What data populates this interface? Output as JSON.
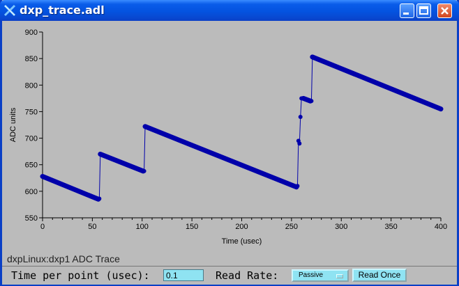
{
  "window": {
    "title": "dxp_trace.adl"
  },
  "status": {
    "pv_label": "dxpLinux:dxp1 ADC Trace"
  },
  "controls": {
    "time_per_point_label": "Time per point (usec):",
    "time_per_point_value": "0.1",
    "read_rate_label": "Read Rate:",
    "read_rate_value": "Passive",
    "read_once_label": "Read Once"
  },
  "colors": {
    "trace": "#0000aa",
    "background": "#bbbbbb",
    "input_bg": "#8fe3f2"
  },
  "chart_data": {
    "type": "line",
    "title": "",
    "xlabel": "Time (usec)",
    "ylabel": "ADC units",
    "xlim": [
      0,
      400
    ],
    "ylim": [
      550,
      900
    ],
    "x_ticks": [
      0,
      50,
      100,
      150,
      200,
      250,
      300,
      350,
      400
    ],
    "y_ticks": [
      550,
      600,
      650,
      700,
      750,
      800,
      850,
      900
    ],
    "grid": false,
    "series": [
      {
        "x": [
          0,
          56,
          57,
          58,
          101,
          102,
          103,
          255,
          256,
          257,
          258,
          259,
          260,
          262,
          269,
          270,
          271,
          400
        ],
        "y": [
          628,
          585,
          586,
          670,
          638,
          638,
          722,
          608,
          610,
          695,
          690,
          740,
          775,
          775,
          770,
          770,
          853,
          755
        ]
      }
    ]
  }
}
